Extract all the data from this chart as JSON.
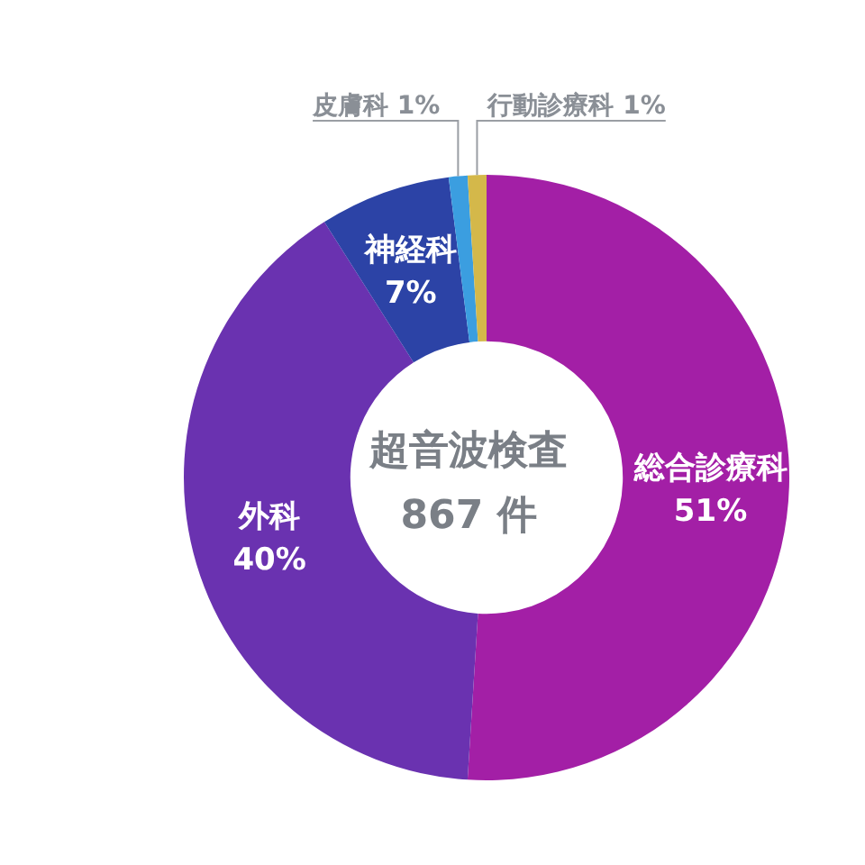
{
  "chart_data": {
    "type": "donut",
    "title": "超音波検査",
    "subtitle": "867 件",
    "categories": [
      "総合診療科",
      "外科",
      "神経科",
      "皮膚科",
      "行動診療科"
    ],
    "values": [
      51,
      40,
      7,
      1,
      1
    ],
    "value_labels": [
      "51%",
      "40%",
      "7%",
      "1%",
      "1%"
    ],
    "colors": [
      "#a31fa6",
      "#6a32b0",
      "#2c43a6",
      "#3b9ee0",
      "#d4b84a"
    ]
  }
}
